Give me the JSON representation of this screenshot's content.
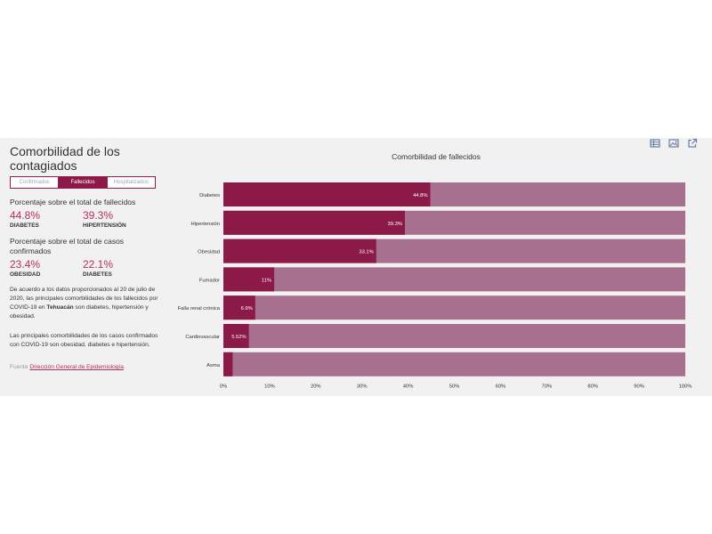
{
  "widget": {
    "title": "Comorbilidad de los contagiados",
    "tabs": [
      {
        "label": "Confirmados",
        "active": false
      },
      {
        "label": "Fallecidos",
        "active": true
      },
      {
        "label": "Hospitalizados",
        "active": false
      }
    ],
    "deaths_heading": "Porcentaje sobre el total de fallecidos",
    "deaths_stats": [
      {
        "value": "44.8%",
        "label": "DIABETES"
      },
      {
        "value": "39.3%",
        "label": "HIPERTENSIÓN"
      }
    ],
    "cases_heading": "Porcentaje sobre el total de casos confirmados",
    "cases_stats": [
      {
        "value": "23.4%",
        "label": "OBESIDAD"
      },
      {
        "value": "22.1%",
        "label": "DIABETES"
      }
    ],
    "paragraph1_before": "De acuerdo a los datos proporcionados al 20 de julio de 2020, las principales comorbilidades de los fallecidos por COVID-19 en ",
    "paragraph1_city": "Tehuacán",
    "paragraph1_after": " son diabetes, hipertensión y obesidad.",
    "paragraph2": "Las principales comorbilidades de los casos confirmados con COVID-19 son obesidad, diabetes e hipertensión.",
    "source_prefix": "Fuente",
    "source_link": "Dirección General de Epidemiología",
    "source_suffix": ".",
    "icons": [
      "table-icon",
      "image-icon",
      "external-link-icon"
    ]
  },
  "colors": {
    "bar": "#8c1a48",
    "bar_remainder": "#a8708f",
    "accent": "#b3305a",
    "panel_bg": "#f1f1f1"
  },
  "chart_data": {
    "type": "bar",
    "orientation": "horizontal",
    "stacked_to_100": true,
    "title": "Comorbilidad de fallecidos",
    "categories": [
      "Diabetes",
      "Hipertensión",
      "Obesidad",
      "Fumador",
      "Falla renal crónica",
      "Cardiovascular",
      "Asma"
    ],
    "values": [
      44.8,
      39.3,
      33.1,
      11,
      6.9,
      5.52,
      2
    ],
    "value_labels": [
      "44.8%",
      "39.3%",
      "33.1%",
      "11%",
      "6.9%",
      "5.52%",
      ""
    ],
    "xlim": [
      0,
      100
    ],
    "xticks": [
      "0%",
      "10%",
      "20%",
      "30%",
      "40%",
      "50%",
      "60%",
      "70%",
      "80%",
      "90%",
      "100%"
    ],
    "grid": false,
    "legend": "none"
  }
}
